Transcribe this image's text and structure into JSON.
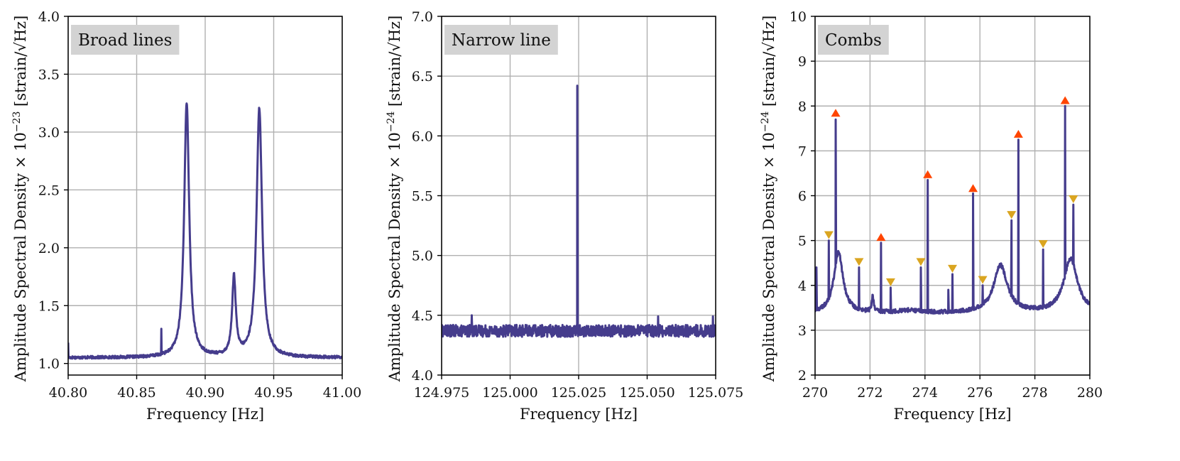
{
  "colors": {
    "line": "#453C8C",
    "grid": "#b0b0b0",
    "label_box": "#d3d3d3",
    "marker_up": "#FF4500",
    "marker_down": "#DAA520"
  },
  "chart_data": [
    {
      "type": "line",
      "label": "Broad lines",
      "xlabel": "Frequency [Hz]",
      "ylabel": "Amplitude Spectral Density  × 10",
      "ylabel_exp": "−23",
      "ylabel_unit": " [strain/√Hz]",
      "xlim": [
        40.8,
        41.0
      ],
      "ylim": [
        0.9,
        4.0
      ],
      "xticks": [
        40.8,
        40.85,
        40.9,
        40.95,
        41.0
      ],
      "xtick_labels": [
        "40.80",
        "40.85",
        "40.90",
        "40.95",
        "41.00"
      ],
      "yticks": [
        1.0,
        1.5,
        2.0,
        2.5,
        3.0,
        3.5,
        4.0
      ],
      "ytick_labels": [
        "1.0",
        "1.5",
        "2.0",
        "2.5",
        "3.0",
        "3.5",
        "4.0"
      ],
      "grid": true,
      "series": [
        {
          "baseline": 1.05,
          "noise": 0.012,
          "peaks": [
            {
              "x": 40.8865,
              "height": 2.2,
              "width": 0.0022
            },
            {
              "x": 40.921,
              "height": 0.68,
              "width": 0.0016
            },
            {
              "x": 40.9395,
              "height": 2.15,
              "width": 0.0024
            }
          ],
          "spikes": [
            {
              "x": 40.868,
              "y": 1.3
            },
            {
              "x": 40.8,
              "y": 1.18
            }
          ]
        }
      ],
      "markers": []
    },
    {
      "type": "line",
      "label": "Narrow line",
      "xlabel": "Frequency [Hz]",
      "ylabel": "Amplitude Spectral Density  × 10",
      "ylabel_exp": "−24",
      "ylabel_unit": " [strain/√Hz]",
      "xlim": [
        124.975,
        125.075
      ],
      "ylim": [
        4.0,
        7.0
      ],
      "xticks": [
        124.975,
        125.0,
        125.025,
        125.05,
        125.075
      ],
      "xtick_labels": [
        "124.975",
        "125.000",
        "125.025",
        "125.050",
        "125.075"
      ],
      "yticks": [
        4.0,
        4.5,
        5.0,
        5.5,
        6.0,
        6.5,
        7.0
      ],
      "ytick_labels": [
        "4.0",
        "4.5",
        "5.0",
        "5.5",
        "6.0",
        "6.5",
        "7.0"
      ],
      "grid": true,
      "series": [
        {
          "baseline": 4.37,
          "noise": 0.05,
          "peaks": [],
          "spikes": [
            {
              "x": 125.0245,
              "y": 6.42
            },
            {
              "x": 124.986,
              "y": 4.5
            },
            {
              "x": 125.054,
              "y": 4.49
            },
            {
              "x": 125.074,
              "y": 4.49
            }
          ]
        }
      ],
      "markers": []
    },
    {
      "type": "line",
      "label": "Combs",
      "xlabel": "Frequency [Hz]",
      "ylabel": "Amplitude Spectral Density  × 10",
      "ylabel_exp": "−24",
      "ylabel_unit": " [strain/√Hz]",
      "xlim": [
        270,
        280
      ],
      "ylim": [
        2,
        10
      ],
      "xticks": [
        270,
        272,
        274,
        276,
        278,
        280
      ],
      "xtick_labels": [
        "270",
        "272",
        "274",
        "276",
        "278",
        "280"
      ],
      "yticks": [
        2,
        3,
        4,
        5,
        6,
        7,
        8,
        9,
        10
      ],
      "ytick_labels": [
        "2",
        "3",
        "4",
        "5",
        "6",
        "7",
        "8",
        "9",
        "10"
      ],
      "grid": true,
      "series": [
        {
          "baseline": 3.38,
          "noise": 0.045,
          "peaks": [
            {
              "x": 270.85,
              "height": 1.35,
              "width": 0.2
            },
            {
              "x": 276.75,
              "height": 1.05,
              "width": 0.3
            },
            {
              "x": 279.3,
              "height": 1.2,
              "width": 0.3
            },
            {
              "x": 272.1,
              "height": 0.35,
              "width": 0.04
            },
            {
              "x": 273.4,
              "height": 0.05,
              "width": 0.5
            }
          ],
          "spikes": [
            {
              "x": 270.05,
              "y": 4.4
            },
            {
              "x": 270.5,
              "y": 5.0
            },
            {
              "x": 270.75,
              "y": 7.7
            },
            {
              "x": 271.6,
              "y": 4.4
            },
            {
              "x": 272.4,
              "y": 4.95
            },
            {
              "x": 272.75,
              "y": 3.95
            },
            {
              "x": 273.85,
              "y": 4.4
            },
            {
              "x": 274.1,
              "y": 6.35
            },
            {
              "x": 274.85,
              "y": 3.9
            },
            {
              "x": 275.0,
              "y": 4.25
            },
            {
              "x": 275.75,
              "y": 6.05
            },
            {
              "x": 276.1,
              "y": 4.0
            },
            {
              "x": 277.15,
              "y": 5.45
            },
            {
              "x": 277.4,
              "y": 7.25
            },
            {
              "x": 278.3,
              "y": 4.8
            },
            {
              "x": 279.1,
              "y": 8.0
            },
            {
              "x": 279.4,
              "y": 5.8
            }
          ]
        }
      ],
      "markers": [
        {
          "x": 270.75,
          "y": 7.85,
          "kind": "up"
        },
        {
          "x": 272.4,
          "y": 5.08,
          "kind": "up"
        },
        {
          "x": 274.1,
          "y": 6.48,
          "kind": "up"
        },
        {
          "x": 275.75,
          "y": 6.17,
          "kind": "up"
        },
        {
          "x": 277.4,
          "y": 7.38,
          "kind": "up"
        },
        {
          "x": 279.1,
          "y": 8.13,
          "kind": "up"
        },
        {
          "x": 270.5,
          "y": 5.12,
          "kind": "down"
        },
        {
          "x": 271.6,
          "y": 4.52,
          "kind": "down"
        },
        {
          "x": 272.75,
          "y": 4.07,
          "kind": "down"
        },
        {
          "x": 273.85,
          "y": 4.52,
          "kind": "down"
        },
        {
          "x": 275.0,
          "y": 4.37,
          "kind": "down"
        },
        {
          "x": 276.1,
          "y": 4.12,
          "kind": "down"
        },
        {
          "x": 277.15,
          "y": 5.57,
          "kind": "down"
        },
        {
          "x": 278.3,
          "y": 4.92,
          "kind": "down"
        },
        {
          "x": 279.4,
          "y": 5.92,
          "kind": "down"
        }
      ]
    }
  ]
}
